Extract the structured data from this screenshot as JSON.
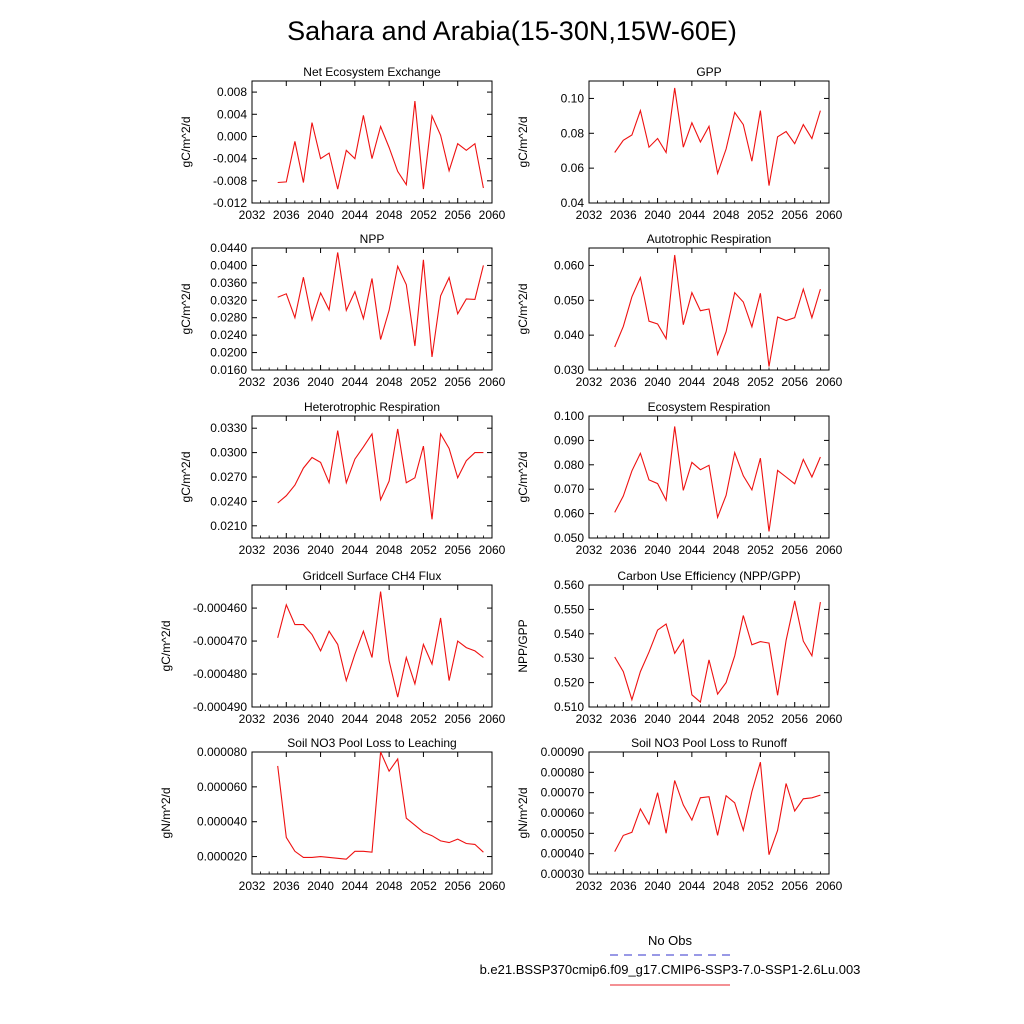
{
  "page": {
    "title": "Sahara and Arabia(15-30N,15W-60E)"
  },
  "legend": {
    "entries": [
      {
        "label": "No Obs",
        "color": "#3333cc",
        "dash": "dashed"
      },
      {
        "label": "b.e21.BSSP370cmip6.f09_g17.CMIP6-SSP3-7.0-SSP1-2.6Lu.003",
        "color": "#e8202a",
        "dash": "solid"
      }
    ]
  },
  "colors": {
    "series": "#ee1111",
    "axis": "#000000"
  },
  "chart_data": [
    {
      "type": "line",
      "title": "Net Ecosystem Exchange",
      "ylabel": "gC/m^2/d",
      "xlim": [
        2032,
        2060
      ],
      "ylim": [
        -0.012,
        0.01
      ],
      "xticks": [
        "2032",
        "2036",
        "2040",
        "2044",
        "2048",
        "2052",
        "2056",
        "2060"
      ],
      "yticks": [
        "0.008",
        "0.004",
        "0.000",
        "-0.004",
        "-0.008",
        "-0.012"
      ],
      "ytick_values": [
        0.008,
        0.004,
        0.0,
        -0.004,
        -0.008,
        -0.012
      ],
      "x": [
        2035,
        2036,
        2037,
        2038,
        2039,
        2040,
        2041,
        2042,
        2043,
        2044,
        2045,
        2046,
        2047,
        2048,
        2049,
        2050,
        2051,
        2052,
        2053,
        2054,
        2055,
        2056,
        2057,
        2058,
        2059
      ],
      "values": [
        -0.0083,
        -0.0082,
        -0.0009,
        -0.0083,
        0.0025,
        -0.004,
        -0.003,
        -0.0095,
        -0.0025,
        -0.004,
        0.0038,
        -0.004,
        0.0018,
        -0.002,
        -0.0063,
        -0.0087,
        0.0064,
        -0.0095,
        0.0037,
        0.0002,
        -0.0062,
        -0.0013,
        -0.0025,
        -0.0013,
        -0.0093
      ]
    },
    {
      "type": "line",
      "title": "GPP",
      "ylabel": "gC/m^2/d",
      "xlim": [
        2032,
        2060
      ],
      "ylim": [
        0.04,
        0.11
      ],
      "xticks": [
        "2032",
        "2036",
        "2040",
        "2044",
        "2048",
        "2052",
        "2056",
        "2060"
      ],
      "yticks": [
        "0.10",
        "0.08",
        "0.06",
        "0.04"
      ],
      "ytick_values": [
        0.1,
        0.08,
        0.06,
        0.04
      ],
      "x": [
        2035,
        2036,
        2037,
        2038,
        2039,
        2040,
        2041,
        2042,
        2043,
        2044,
        2045,
        2046,
        2047,
        2048,
        2049,
        2050,
        2051,
        2052,
        2053,
        2054,
        2055,
        2056,
        2057,
        2058,
        2059
      ],
      "values": [
        0.069,
        0.076,
        0.079,
        0.093,
        0.072,
        0.077,
        0.069,
        0.106,
        0.072,
        0.086,
        0.075,
        0.084,
        0.057,
        0.071,
        0.092,
        0.085,
        0.064,
        0.093,
        0.05,
        0.078,
        0.081,
        0.074,
        0.085,
        0.077,
        0.093
      ]
    },
    {
      "type": "line",
      "title": "NPP",
      "ylabel": "gC/m^2/d",
      "xlim": [
        2032,
        2060
      ],
      "ylim": [
        0.016,
        0.044
      ],
      "xticks": [
        "2032",
        "2036",
        "2040",
        "2044",
        "2048",
        "2052",
        "2056",
        "2060"
      ],
      "yticks": [
        "0.0440",
        "0.0400",
        "0.0360",
        "0.0320",
        "0.0280",
        "0.0240",
        "0.0200",
        "0.0160"
      ],
      "ytick_values": [
        0.044,
        0.04,
        0.036,
        0.032,
        0.028,
        0.024,
        0.02,
        0.016
      ],
      "x": [
        2035,
        2036,
        2037,
        2038,
        2039,
        2040,
        2041,
        2042,
        2043,
        2044,
        2045,
        2046,
        2047,
        2048,
        2049,
        2050,
        2051,
        2052,
        2053,
        2054,
        2055,
        2056,
        2057,
        2058,
        2059
      ],
      "values": [
        0.0327,
        0.0335,
        0.028,
        0.0373,
        0.0275,
        0.0337,
        0.0298,
        0.043,
        0.0297,
        0.034,
        0.0278,
        0.037,
        0.023,
        0.0297,
        0.0398,
        0.0356,
        0.0215,
        0.0413,
        0.019,
        0.033,
        0.0372,
        0.0289,
        0.0323,
        0.0322,
        0.04
      ]
    },
    {
      "type": "line",
      "title": "Autotrophic Respiration",
      "ylabel": "gC/m^2/d",
      "xlim": [
        2032,
        2060
      ],
      "ylim": [
        0.03,
        0.065
      ],
      "xticks": [
        "2032",
        "2036",
        "2040",
        "2044",
        "2048",
        "2052",
        "2056",
        "2060"
      ],
      "yticks": [
        "0.060",
        "0.050",
        "0.040",
        "0.030"
      ],
      "ytick_values": [
        0.06,
        0.05,
        0.04,
        0.03
      ],
      "x": [
        2035,
        2036,
        2037,
        2038,
        2039,
        2040,
        2041,
        2042,
        2043,
        2044,
        2045,
        2046,
        2047,
        2048,
        2049,
        2050,
        2051,
        2052,
        2053,
        2054,
        2055,
        2056,
        2057,
        2058,
        2059
      ],
      "values": [
        0.0366,
        0.0425,
        0.051,
        0.0565,
        0.044,
        0.0432,
        0.039,
        0.063,
        0.043,
        0.0522,
        0.047,
        0.0475,
        0.0345,
        0.041,
        0.0522,
        0.0495,
        0.0424,
        0.052,
        0.031,
        0.0452,
        0.0442,
        0.045,
        0.0532,
        0.045,
        0.0532
      ]
    },
    {
      "type": "line",
      "title": "Heterotrophic Respiration",
      "ylabel": "gC/m^2/d",
      "xlim": [
        2032,
        2060
      ],
      "ylim": [
        0.0195,
        0.0345
      ],
      "xticks": [
        "2032",
        "2036",
        "2040",
        "2044",
        "2048",
        "2052",
        "2056",
        "2060"
      ],
      "yticks": [
        "0.0330",
        "0.0300",
        "0.0270",
        "0.0240",
        "0.0210"
      ],
      "ytick_values": [
        0.033,
        0.03,
        0.027,
        0.024,
        0.021
      ],
      "x": [
        2035,
        2036,
        2037,
        2038,
        2039,
        2040,
        2041,
        2042,
        2043,
        2044,
        2045,
        2046,
        2047,
        2048,
        2049,
        2050,
        2051,
        2052,
        2053,
        2054,
        2055,
        2056,
        2057,
        2058,
        2059
      ],
      "values": [
        0.0238,
        0.0247,
        0.026,
        0.0281,
        0.0294,
        0.0288,
        0.0263,
        0.0327,
        0.0263,
        0.0292,
        0.0307,
        0.0323,
        0.0242,
        0.0265,
        0.0329,
        0.0263,
        0.0269,
        0.0308,
        0.0218,
        0.0323,
        0.0305,
        0.0269,
        0.029,
        0.03,
        0.03
      ]
    },
    {
      "type": "line",
      "title": "Ecosystem Respiration",
      "ylabel": "gC/m^2/d",
      "xlim": [
        2032,
        2060
      ],
      "ylim": [
        0.05,
        0.1
      ],
      "xticks": [
        "2032",
        "2036",
        "2040",
        "2044",
        "2048",
        "2052",
        "2056",
        "2060"
      ],
      "yticks": [
        "0.100",
        "0.090",
        "0.080",
        "0.070",
        "0.060",
        "0.050"
      ],
      "ytick_values": [
        0.1,
        0.09,
        0.08,
        0.07,
        0.06,
        0.05
      ],
      "x": [
        2035,
        2036,
        2037,
        2038,
        2039,
        2040,
        2041,
        2042,
        2043,
        2044,
        2045,
        2046,
        2047,
        2048,
        2049,
        2050,
        2051,
        2052,
        2053,
        2054,
        2055,
        2056,
        2057,
        2058,
        2059
      ],
      "values": [
        0.0605,
        0.0672,
        0.0775,
        0.0847,
        0.0738,
        0.0723,
        0.0655,
        0.0957,
        0.0695,
        0.081,
        0.078,
        0.0798,
        0.0585,
        0.0675,
        0.085,
        0.0755,
        0.0697,
        0.0827,
        0.0527,
        0.0777,
        0.075,
        0.0722,
        0.0822,
        0.075,
        0.0832
      ]
    },
    {
      "type": "line",
      "title": "Gridcell Surface CH4 Flux",
      "ylabel": "gC/m^2/d",
      "xlim": [
        2032,
        2060
      ],
      "ylim": [
        -0.00049,
        -0.000453
      ],
      "xticks": [
        "2032",
        "2036",
        "2040",
        "2044",
        "2048",
        "2052",
        "2056",
        "2060"
      ],
      "yticks": [
        "-0.000460",
        "-0.000470",
        "-0.000480",
        "-0.000490"
      ],
      "ytick_values": [
        -0.00046,
        -0.00047,
        -0.00048,
        -0.00049
      ],
      "x": [
        2035,
        2036,
        2037,
        2038,
        2039,
        2040,
        2041,
        2042,
        2043,
        2044,
        2045,
        2046,
        2047,
        2048,
        2049,
        2050,
        2051,
        2052,
        2053,
        2054,
        2055,
        2056,
        2057,
        2058,
        2059
      ],
      "values": [
        -0.000469,
        -0.000459,
        -0.000465,
        -0.000465,
        -0.000468,
        -0.000473,
        -0.000467,
        -0.000471,
        -0.000482,
        -0.000474,
        -0.000467,
        -0.000475,
        -0.000455,
        -0.000476,
        -0.000487,
        -0.000475,
        -0.000483,
        -0.000471,
        -0.000477,
        -0.000463,
        -0.000482,
        -0.00047,
        -0.000472,
        -0.000473,
        -0.000475
      ]
    },
    {
      "type": "line",
      "title": "Carbon Use Efficiency (NPP/GPP)",
      "ylabel": "NPP/GPP",
      "xlim": [
        2032,
        2060
      ],
      "ylim": [
        0.51,
        0.56
      ],
      "xticks": [
        "2032",
        "2036",
        "2040",
        "2044",
        "2048",
        "2052",
        "2056",
        "2060"
      ],
      "yticks": [
        "0.560",
        "0.550",
        "0.540",
        "0.530",
        "0.520",
        "0.510"
      ],
      "ytick_values": [
        0.56,
        0.55,
        0.54,
        0.53,
        0.52,
        0.51
      ],
      "x": [
        2035,
        2036,
        2037,
        2038,
        2039,
        2040,
        2041,
        2042,
        2043,
        2044,
        2045,
        2046,
        2047,
        2048,
        2049,
        2050,
        2051,
        2052,
        2053,
        2054,
        2055,
        2056,
        2057,
        2058,
        2059
      ],
      "values": [
        0.5305,
        0.5245,
        0.513,
        0.5245,
        0.5325,
        0.5415,
        0.544,
        0.532,
        0.5375,
        0.515,
        0.512,
        0.5293,
        0.5153,
        0.52,
        0.531,
        0.5475,
        0.5355,
        0.5368,
        0.5362,
        0.5148,
        0.5373,
        0.5535,
        0.537,
        0.531,
        0.553
      ]
    },
    {
      "type": "line",
      "title": "Soil NO3 Pool Loss to Leaching",
      "ylabel": "gN/m^2/d",
      "xlim": [
        2032,
        2060
      ],
      "ylim": [
        1e-05,
        8e-05
      ],
      "xticks": [
        "2032",
        "2036",
        "2040",
        "2044",
        "2048",
        "2052",
        "2056",
        "2060"
      ],
      "yticks": [
        "0.000080",
        "0.000060",
        "0.000040",
        "0.000020"
      ],
      "ytick_values": [
        8e-05,
        6e-05,
        4e-05,
        2e-05
      ],
      "x": [
        2035,
        2036,
        2037,
        2038,
        2039,
        2040,
        2041,
        2042,
        2043,
        2044,
        2045,
        2046,
        2047,
        2048,
        2049,
        2050,
        2051,
        2052,
        2053,
        2054,
        2055,
        2056,
        2057,
        2058,
        2059
      ],
      "values": [
        7.2e-05,
        3.1e-05,
        2.3e-05,
        1.95e-05,
        1.95e-05,
        2e-05,
        1.95e-05,
        1.9e-05,
        1.85e-05,
        2.3e-05,
        2.3e-05,
        2.25e-05,
        8e-05,
        6.9e-05,
        7.6e-05,
        4.2e-05,
        3.8e-05,
        3.4e-05,
        3.2e-05,
        2.9e-05,
        2.8e-05,
        3e-05,
        2.75e-05,
        2.7e-05,
        2.25e-05
      ]
    },
    {
      "type": "line",
      "title": "Soil NO3 Pool Loss to Runoff",
      "ylabel": "gN/m^2/d",
      "xlim": [
        2032,
        2060
      ],
      "ylim": [
        0.0003,
        0.0009
      ],
      "xticks": [
        "2032",
        "2036",
        "2040",
        "2044",
        "2048",
        "2052",
        "2056",
        "2060"
      ],
      "yticks": [
        "0.00090",
        "0.00080",
        "0.00070",
        "0.00060",
        "0.00050",
        "0.00040",
        "0.00030"
      ],
      "ytick_values": [
        0.0009,
        0.0008,
        0.0007,
        0.0006,
        0.0005,
        0.0004,
        0.0003
      ],
      "x": [
        2035,
        2036,
        2037,
        2038,
        2039,
        2040,
        2041,
        2042,
        2043,
        2044,
        2045,
        2046,
        2047,
        2048,
        2049,
        2050,
        2051,
        2052,
        2053,
        2054,
        2055,
        2056,
        2057,
        2058,
        2059
      ],
      "values": [
        0.00041,
        0.00049,
        0.000505,
        0.00062,
        0.000545,
        0.0007,
        0.0005,
        0.00076,
        0.00064,
        0.000565,
        0.000675,
        0.00068,
        0.00049,
        0.000685,
        0.00065,
        0.000515,
        0.000705,
        0.00085,
        0.000395,
        0.000515,
        0.000745,
        0.00061,
        0.00067,
        0.000675,
        0.000688
      ]
    }
  ]
}
